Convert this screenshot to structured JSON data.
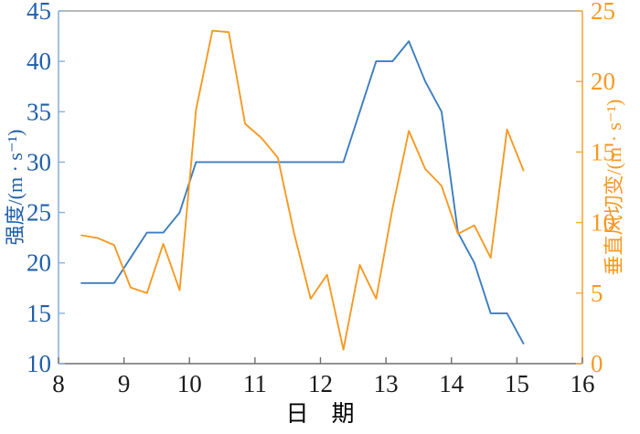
{
  "chart_data": {
    "type": "line",
    "title": "",
    "xlabel": "日　期",
    "ylabel_left": "强度/(m · s⁻¹)",
    "ylabel_right": "垂直风切变/(m · s⁻¹)",
    "xlim": [
      8,
      16
    ],
    "xticks": [
      8,
      9,
      10,
      11,
      12,
      13,
      14,
      15,
      16
    ],
    "ylim_left": [
      10,
      45
    ],
    "yticks_left": [
      10,
      15,
      20,
      25,
      30,
      35,
      40,
      45
    ],
    "ylim_right": [
      0,
      25
    ],
    "yticks_right": [
      0,
      5,
      10,
      15,
      20,
      25
    ],
    "grid": false,
    "legend": "none",
    "x": [
      8.35,
      8.6,
      8.85,
      9.1,
      9.35,
      9.6,
      9.85,
      10.1,
      10.35,
      10.6,
      10.85,
      11.1,
      11.35,
      11.6,
      11.85,
      12.1,
      12.35,
      12.6,
      12.85,
      13.1,
      13.35,
      13.6,
      13.85,
      14.1,
      14.35,
      14.6,
      14.85,
      15.1
    ],
    "series": [
      {
        "name": "强度",
        "axis": "left",
        "color": "#3d7ebf",
        "values": [
          18,
          18,
          18,
          20.5,
          23,
          23,
          25,
          30,
          30,
          30,
          30,
          30,
          30,
          30,
          30,
          30,
          30,
          35,
          40,
          40,
          42,
          38,
          35,
          23,
          20,
          15,
          15,
          12
        ]
      },
      {
        "name": "垂直风切变",
        "axis": "right",
        "color": "#f59a23",
        "values": [
          9.1,
          8.9,
          8.4,
          5.4,
          5.0,
          8.5,
          5.2,
          18.0,
          23.6,
          23.5,
          17.0,
          16.0,
          14.6,
          9.2,
          4.6,
          6.3,
          1.0,
          7.0,
          4.6,
          11.0,
          16.5,
          13.8,
          12.6,
          9.2,
          9.8,
          7.5,
          16.6,
          13.7
        ]
      }
    ],
    "axis_colors": {
      "bottom_spine": "#6e6e6e",
      "top_spine": "#a0a0a0",
      "left_spine": "#8ab1dc",
      "right_spine": "#f5a742",
      "x_tick_labels": "#1a1a1a",
      "left_tick_labels": "#1f5fa8",
      "right_tick_labels": "#f59a23",
      "x_title": "#000000"
    }
  }
}
